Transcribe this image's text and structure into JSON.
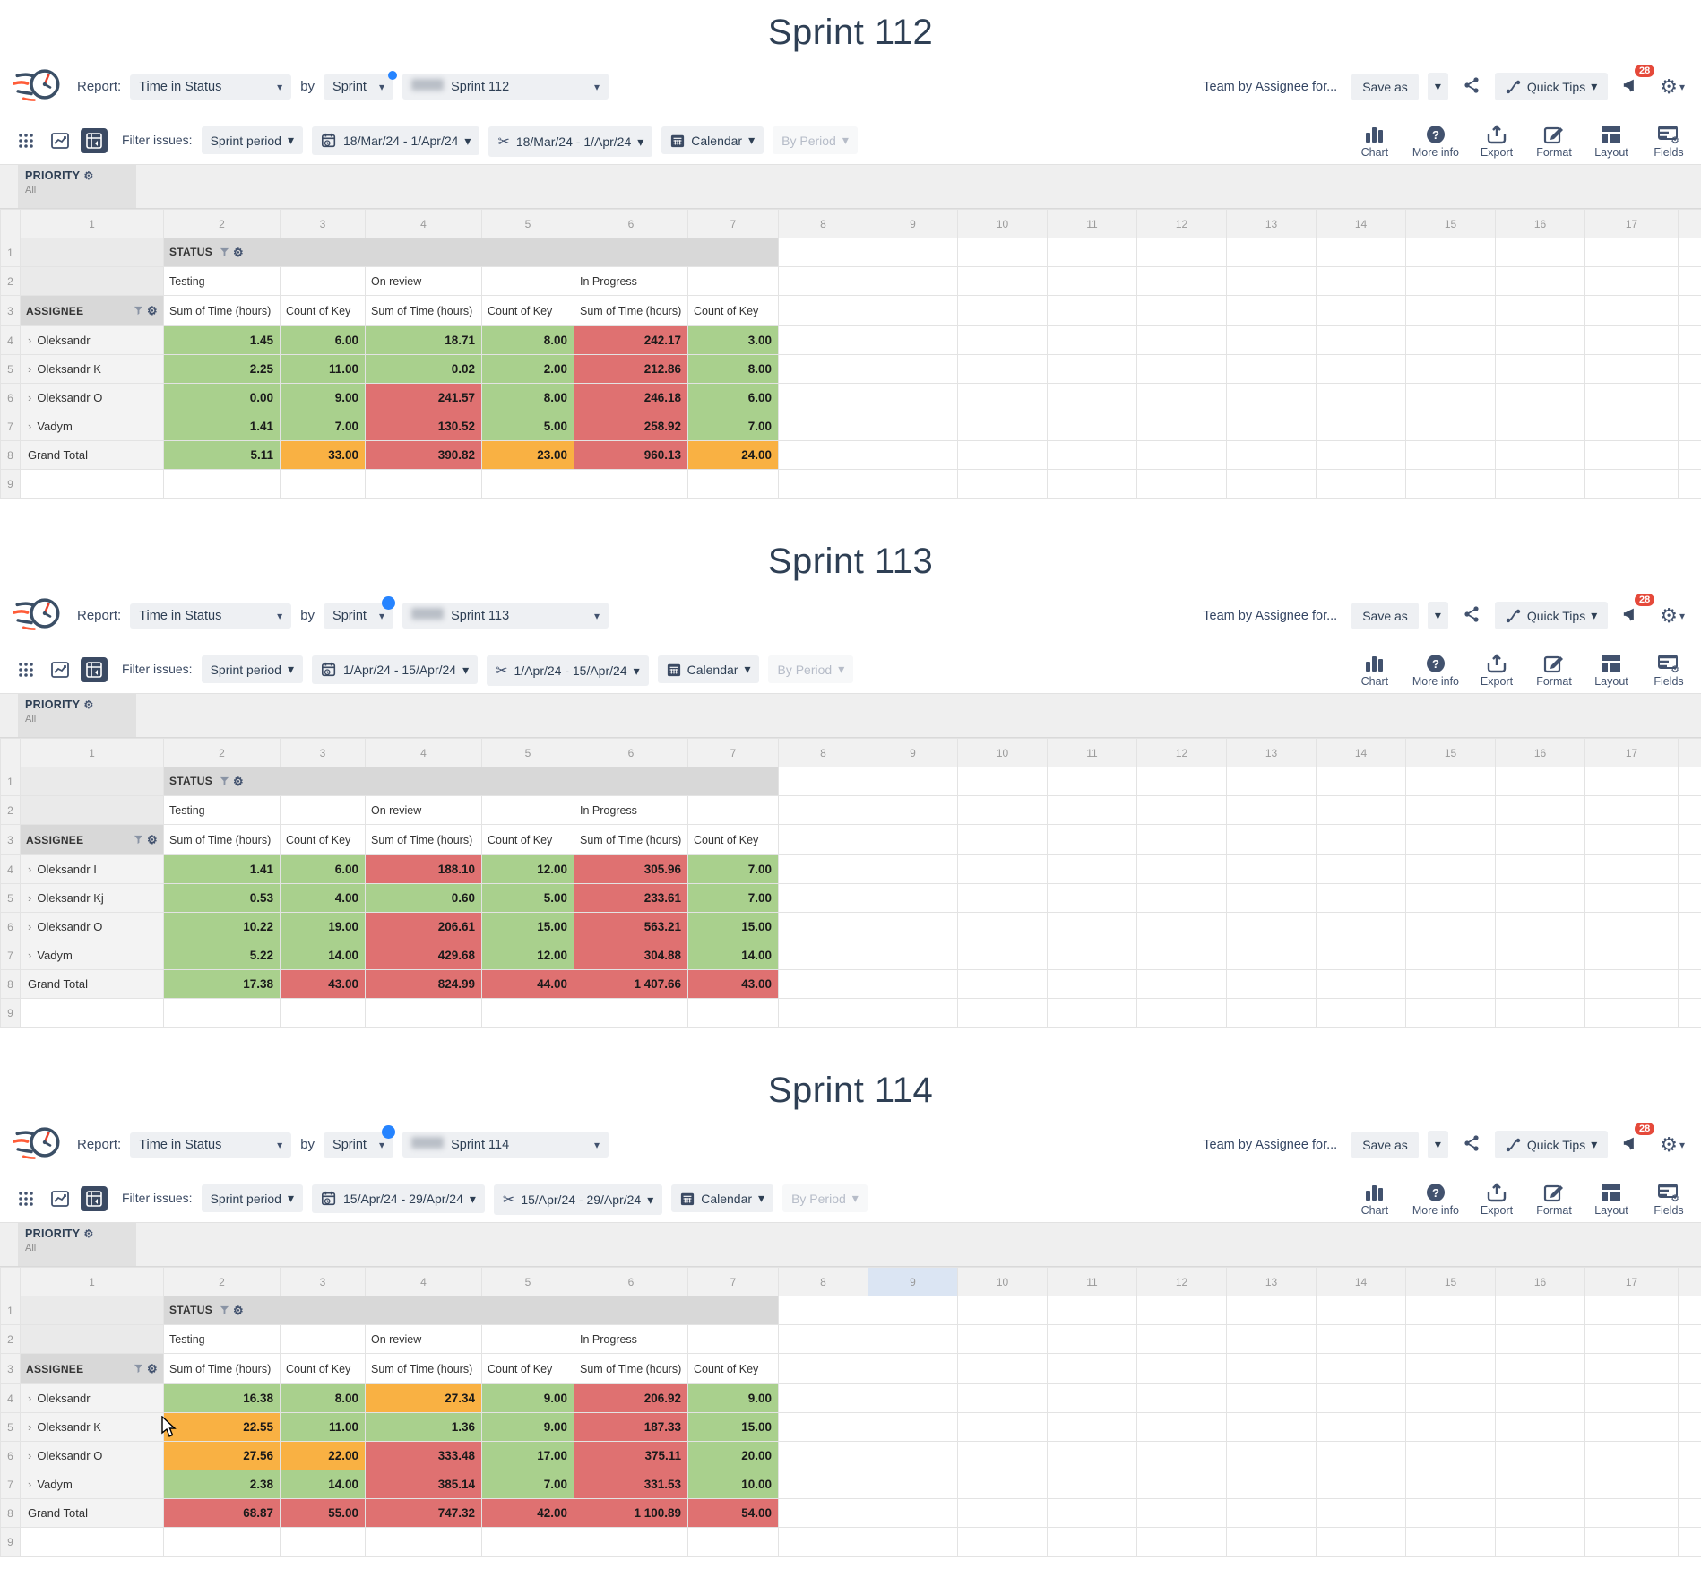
{
  "colors": {
    "green": "#a9d08d",
    "red": "#df7171",
    "orange": "#f9b143",
    "navy": "#42526e",
    "badge_red": "#e5493a",
    "blue_dot": "#2684ff",
    "col_highlight": "#dbe5f3"
  },
  "cursor": {
    "section_index": 2
  },
  "sections": [
    {
      "title": "Sprint 112",
      "header": {
        "report_label": "Report:",
        "report_value": "Time in Status",
        "by_label": "by",
        "group_by_value": "Sprint",
        "sprint_value": "Sprint 112",
        "sprint_menu_dot": "small",
        "team_text": "Team by Assignee for...",
        "save_as_label": "Save as",
        "quick_tips_label": "Quick Tips",
        "notification_count": "28"
      },
      "filters": {
        "filter_issues_label": "Filter issues:",
        "filter_value": "Sprint period",
        "date_range": "18/Mar/24 - 1/Apr/24",
        "issue_range": "18/Mar/24 - 1/Apr/24",
        "calendar_label": "Calendar",
        "by_period_label": "By Period",
        "right_icons": [
          "Chart",
          "More info",
          "Export",
          "Format",
          "Layout",
          "Fields"
        ]
      },
      "priority": {
        "label": "PRIORITY",
        "value": "All"
      },
      "grid": {
        "column_numbers": [
          "1",
          "2",
          "3",
          "4",
          "5",
          "6",
          "7",
          "8",
          "9",
          "10",
          "11",
          "12",
          "13",
          "14",
          "15",
          "16",
          "17"
        ],
        "highlighted_column": "",
        "status_label": "STATUS",
        "assignee_label": "ASSIGNEE",
        "groups": [
          "Testing",
          "On review",
          "In Progress"
        ],
        "measures": [
          "Sum of Time (hours)",
          "Count of Key"
        ],
        "rows": [
          {
            "name": "Oleksandr",
            "expandable": true,
            "values": [
              "1.45",
              "6.00",
              "18.71",
              "8.00",
              "242.17",
              "3.00"
            ],
            "cell_colors": [
              "green",
              "green",
              "green",
              "green",
              "red",
              "green"
            ]
          },
          {
            "name": "Oleksandr K",
            "expandable": true,
            "values": [
              "2.25",
              "11.00",
              "0.02",
              "2.00",
              "212.86",
              "8.00"
            ],
            "cell_colors": [
              "green",
              "green",
              "green",
              "green",
              "red",
              "green"
            ]
          },
          {
            "name": "Oleksandr O",
            "expandable": true,
            "values": [
              "0.00",
              "9.00",
              "241.57",
              "8.00",
              "246.18",
              "6.00"
            ],
            "cell_colors": [
              "green",
              "green",
              "red",
              "green",
              "red",
              "green"
            ]
          },
          {
            "name": "Vadym",
            "expandable": true,
            "values": [
              "1.41",
              "7.00",
              "130.52",
              "5.00",
              "258.92",
              "7.00"
            ],
            "cell_colors": [
              "green",
              "green",
              "red",
              "green",
              "red",
              "green"
            ]
          },
          {
            "name": "Grand Total",
            "expandable": false,
            "values": [
              "5.11",
              "33.00",
              "390.82",
              "23.00",
              "960.13",
              "24.00"
            ],
            "cell_colors": [
              "green",
              "orange",
              "red",
              "orange",
              "red",
              "orange"
            ]
          }
        ]
      }
    },
    {
      "title": "Sprint 113",
      "header": {
        "report_label": "Report:",
        "report_value": "Time in Status",
        "by_label": "by",
        "group_by_value": "Sprint",
        "sprint_value": "Sprint 113",
        "sprint_menu_dot": "large",
        "team_text": "Team by Assignee for...",
        "save_as_label": "Save as",
        "quick_tips_label": "Quick Tips",
        "notification_count": "28"
      },
      "filters": {
        "filter_issues_label": "Filter issues:",
        "filter_value": "Sprint period",
        "date_range": "1/Apr/24 - 15/Apr/24",
        "issue_range": "1/Apr/24 - 15/Apr/24",
        "calendar_label": "Calendar",
        "by_period_label": "By Period",
        "right_icons": [
          "Chart",
          "More info",
          "Export",
          "Format",
          "Layout",
          "Fields"
        ]
      },
      "priority": {
        "label": "PRIORITY",
        "value": "All"
      },
      "grid": {
        "column_numbers": [
          "1",
          "2",
          "3",
          "4",
          "5",
          "6",
          "7",
          "8",
          "9",
          "10",
          "11",
          "12",
          "13",
          "14",
          "15",
          "16",
          "17"
        ],
        "highlighted_column": "",
        "status_label": "STATUS",
        "assignee_label": "ASSIGNEE",
        "groups": [
          "Testing",
          "On review",
          "In Progress"
        ],
        "measures": [
          "Sum of Time (hours)",
          "Count of Key"
        ],
        "rows": [
          {
            "name": "Oleksandr I",
            "expandable": true,
            "values": [
              "1.41",
              "6.00",
              "188.10",
              "12.00",
              "305.96",
              "7.00"
            ],
            "cell_colors": [
              "green",
              "green",
              "red",
              "green",
              "red",
              "green"
            ]
          },
          {
            "name": "Oleksandr Kj",
            "expandable": true,
            "values": [
              "0.53",
              "4.00",
              "0.60",
              "5.00",
              "233.61",
              "7.00"
            ],
            "cell_colors": [
              "green",
              "green",
              "green",
              "green",
              "red",
              "green"
            ]
          },
          {
            "name": "Oleksandr O",
            "expandable": true,
            "values": [
              "10.22",
              "19.00",
              "206.61",
              "15.00",
              "563.21",
              "15.00"
            ],
            "cell_colors": [
              "green",
              "green",
              "red",
              "green",
              "red",
              "green"
            ]
          },
          {
            "name": "Vadym",
            "expandable": true,
            "values": [
              "5.22",
              "14.00",
              "429.68",
              "12.00",
              "304.88",
              "14.00"
            ],
            "cell_colors": [
              "green",
              "green",
              "red",
              "green",
              "red",
              "green"
            ]
          },
          {
            "name": "Grand Total",
            "expandable": false,
            "values": [
              "17.38",
              "43.00",
              "824.99",
              "44.00",
              "1 407.66",
              "43.00"
            ],
            "cell_colors": [
              "green",
              "red",
              "red",
              "red",
              "red",
              "red"
            ]
          }
        ]
      }
    },
    {
      "title": "Sprint 114",
      "header": {
        "report_label": "Report:",
        "report_value": "Time in Status",
        "by_label": "by",
        "group_by_value": "Sprint",
        "sprint_value": "Sprint 114",
        "sprint_menu_dot": "large",
        "team_text": "Team by Assignee for...",
        "save_as_label": "Save as",
        "quick_tips_label": "Quick Tips",
        "notification_count": "28"
      },
      "filters": {
        "filter_issues_label": "Filter issues:",
        "filter_value": "Sprint period",
        "date_range": "15/Apr/24 - 29/Apr/24",
        "issue_range": "15/Apr/24 - 29/Apr/24",
        "calendar_label": "Calendar",
        "by_period_label": "By Period",
        "right_icons": [
          "Chart",
          "More info",
          "Export",
          "Format",
          "Layout",
          "Fields"
        ]
      },
      "priority": {
        "label": "PRIORITY",
        "value": "All"
      },
      "grid": {
        "column_numbers": [
          "1",
          "2",
          "3",
          "4",
          "5",
          "6",
          "7",
          "8",
          "9",
          "10",
          "11",
          "12",
          "13",
          "14",
          "15",
          "16",
          "17"
        ],
        "highlighted_column": "9",
        "status_label": "STATUS",
        "assignee_label": "ASSIGNEE",
        "groups": [
          "Testing",
          "On review",
          "In Progress"
        ],
        "measures": [
          "Sum of Time (hours)",
          "Count of Key"
        ],
        "rows": [
          {
            "name": "Oleksandr",
            "expandable": true,
            "values": [
              "16.38",
              "8.00",
              "27.34",
              "9.00",
              "206.92",
              "9.00"
            ],
            "cell_colors": [
              "green",
              "green",
              "orange",
              "green",
              "red",
              "green"
            ]
          },
          {
            "name": "Oleksandr K",
            "expandable": true,
            "values": [
              "22.55",
              "11.00",
              "1.36",
              "9.00",
              "187.33",
              "15.00"
            ],
            "cell_colors": [
              "orange",
              "green",
              "green",
              "green",
              "red",
              "green"
            ]
          },
          {
            "name": "Oleksandr O",
            "expandable": true,
            "values": [
              "27.56",
              "22.00",
              "333.48",
              "17.00",
              "375.11",
              "20.00"
            ],
            "cell_colors": [
              "orange",
              "orange",
              "red",
              "green",
              "red",
              "green"
            ]
          },
          {
            "name": "Vadym",
            "expandable": true,
            "values": [
              "2.38",
              "14.00",
              "385.14",
              "7.00",
              "331.53",
              "10.00"
            ],
            "cell_colors": [
              "green",
              "green",
              "red",
              "green",
              "red",
              "green"
            ]
          },
          {
            "name": "Grand Total",
            "expandable": false,
            "values": [
              "68.87",
              "55.00",
              "747.32",
              "42.00",
              "1 100.89",
              "54.00"
            ],
            "cell_colors": [
              "red",
              "red",
              "red",
              "red",
              "red",
              "red"
            ]
          }
        ]
      }
    }
  ]
}
